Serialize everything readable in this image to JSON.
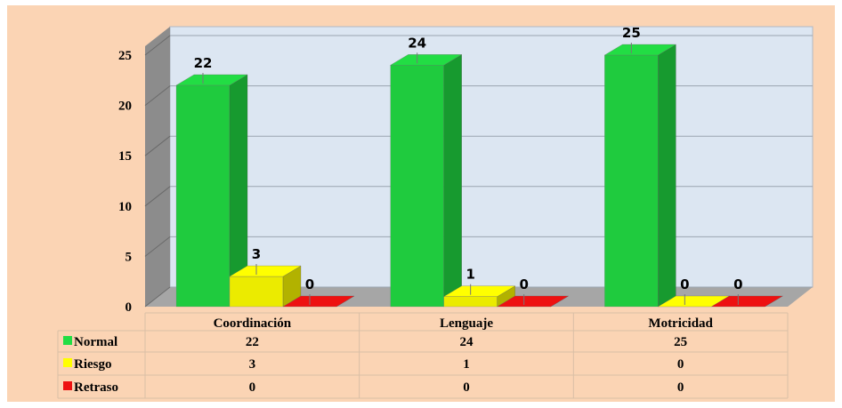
{
  "chart_data": {
    "type": "bar3d",
    "categories": [
      "Coordinación",
      "Lenguaje",
      "Motricidad"
    ],
    "series": [
      {
        "name": "Normal",
        "color": "#22dd44",
        "values": [
          22,
          24,
          25
        ]
      },
      {
        "name": "Riesgo",
        "color": "#ffff00",
        "values": [
          3,
          1,
          0
        ]
      },
      {
        "name": "Retraso",
        "color": "#ee1111",
        "values": [
          0,
          0,
          0
        ]
      }
    ],
    "ylim": [
      0,
      25
    ],
    "yticks": [
      0,
      5,
      10,
      15,
      20,
      25
    ],
    "grid": true,
    "data_table": true
  }
}
